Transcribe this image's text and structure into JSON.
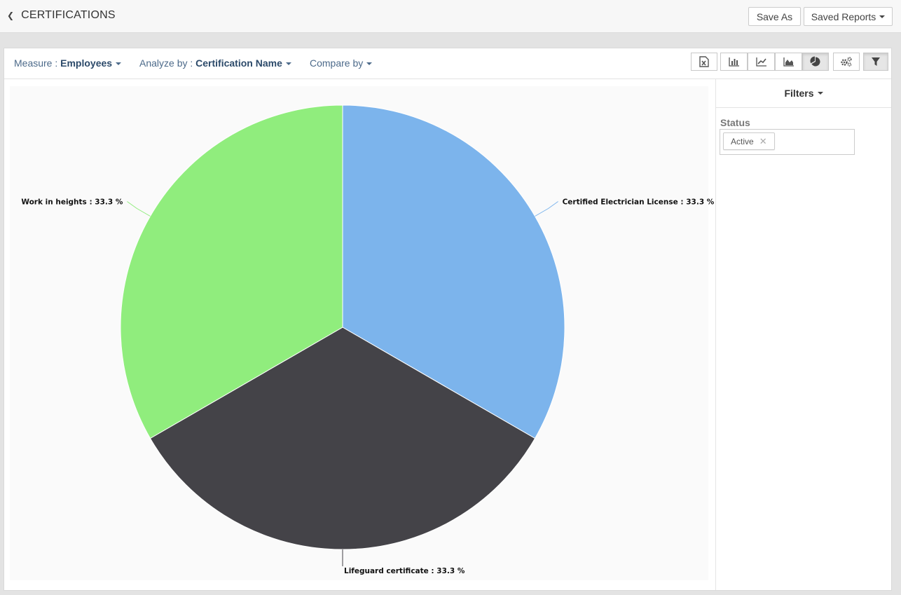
{
  "header": {
    "title": "CERTIFICATIONS",
    "save_as": "Save As",
    "saved_reports": "Saved Reports"
  },
  "toolbar": {
    "measure_label": "Measure : ",
    "measure_value": "Employees",
    "analyze_label": "Analyze by : ",
    "analyze_value": "Certification Name",
    "compare_label": "Compare by",
    "view_buttons": [
      "export-excel-icon",
      "bar-chart-icon",
      "line-chart-icon",
      "area-chart-icon",
      "pie-chart-icon",
      "settings-icon",
      "filter-icon"
    ],
    "active_view": "pie-chart-icon"
  },
  "filters": {
    "title": "Filters",
    "status_label": "Status",
    "status_chip": "Active"
  },
  "chart_data": {
    "type": "pie",
    "categories": [
      "Certified Electrician License",
      "Lifeguard certificate",
      "Work in heights"
    ],
    "values": [
      33.3,
      33.3,
      33.3
    ],
    "labels": [
      "Certified Electrician License : 33.3 %",
      "Lifeguard certificate : 33.3 %",
      "Work in heights : 33.3 %"
    ],
    "colors": [
      "#7cb4ec",
      "#444348",
      "#90ed7d"
    ]
  }
}
